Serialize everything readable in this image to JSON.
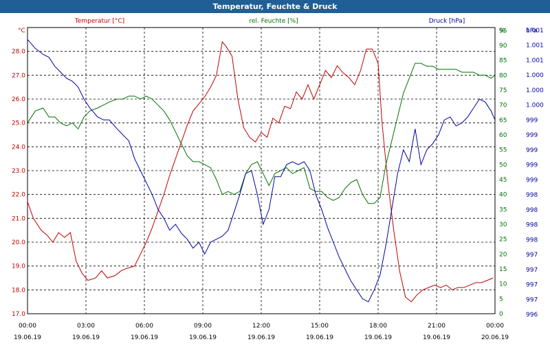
{
  "window": {
    "title": "Temperatur, Feuchte & Druck"
  },
  "colors": {
    "temperature": "#c00000",
    "humidity": "#007000",
    "pressure": "#0000a0",
    "titlebar": "#1f5f96"
  },
  "chart_data": {
    "type": "line",
    "title": "Temperatur, Feuchte & Druck",
    "x_ticks": [
      {
        "time": "00:00",
        "date": "19.06.19"
      },
      {
        "time": "03:00",
        "date": "19.06.19"
      },
      {
        "time": "06:00",
        "date": "19.06.19"
      },
      {
        "time": "09:00",
        "date": "19.06.19"
      },
      {
        "time": "12:00",
        "date": "19.06.19"
      },
      {
        "time": "15:00",
        "date": "19.06.19"
      },
      {
        "time": "18:00",
        "date": "19.06.19"
      },
      {
        "time": "21:00",
        "date": "19.06.19"
      },
      {
        "time": "00:00",
        "date": "20.06.19"
      }
    ],
    "xlim": [
      0,
      24
    ],
    "grid": true,
    "axes": {
      "temperature": {
        "label": "Temperatur [°C]",
        "unit": "°C",
        "ylim": [
          17.0,
          29.0
        ],
        "ticks": [
          "17.0",
          "18.0",
          "19.0",
          "20.0",
          "21.0",
          "22.0",
          "23.0",
          "24.0",
          "25.0",
          "26.0",
          "27.0",
          "28.0"
        ]
      },
      "humidity": {
        "label": "rel. Feuchte [%]",
        "unit": "%",
        "ylim": [
          0,
          96
        ],
        "ticks": [
          "0",
          "5",
          "10",
          "15",
          "20",
          "25",
          "30",
          "35",
          "40",
          "45",
          "50",
          "55",
          "60",
          "65",
          "70",
          "75",
          "80",
          "85",
          "90",
          "95"
        ]
      },
      "pressure": {
        "label": "Druck [hPa]",
        "unit": "hPa",
        "ticks": [
          "996",
          "997",
          "997",
          "997",
          "997",
          "998",
          "998",
          "998",
          "998",
          "999",
          "999",
          "999",
          "999",
          "999",
          "1.000",
          "1.000",
          "1.000",
          "1.001",
          "1.001",
          "1.001"
        ]
      }
    },
    "series": [
      {
        "name": "Temperatur [°C]",
        "axis": "temperature",
        "points": [
          [
            0,
            21.7
          ],
          [
            0.3,
            21.0
          ],
          [
            0.7,
            20.5
          ],
          [
            1.0,
            20.3
          ],
          [
            1.3,
            20.0
          ],
          [
            1.6,
            20.4
          ],
          [
            1.9,
            20.2
          ],
          [
            2.2,
            20.4
          ],
          [
            2.5,
            19.2
          ],
          [
            2.8,
            18.7
          ],
          [
            3.1,
            18.4
          ],
          [
            3.5,
            18.5
          ],
          [
            3.8,
            18.8
          ],
          [
            4.1,
            18.5
          ],
          [
            4.5,
            18.6
          ],
          [
            4.8,
            18.8
          ],
          [
            5.1,
            18.9
          ],
          [
            5.5,
            19.0
          ],
          [
            5.8,
            19.5
          ],
          [
            6.1,
            20.0
          ],
          [
            6.4,
            20.6
          ],
          [
            6.7,
            21.3
          ],
          [
            7.0,
            22.0
          ],
          [
            7.3,
            22.8
          ],
          [
            7.6,
            23.5
          ],
          [
            7.9,
            24.2
          ],
          [
            8.2,
            24.9
          ],
          [
            8.5,
            25.5
          ],
          [
            8.8,
            25.8
          ],
          [
            9.1,
            26.1
          ],
          [
            9.4,
            26.5
          ],
          [
            9.7,
            27.0
          ],
          [
            10.0,
            28.4
          ],
          [
            10.2,
            28.2
          ],
          [
            10.5,
            27.8
          ],
          [
            10.8,
            26.0
          ],
          [
            11.1,
            24.8
          ],
          [
            11.4,
            24.4
          ],
          [
            11.7,
            24.2
          ],
          [
            12.0,
            24.6
          ],
          [
            12.3,
            24.4
          ],
          [
            12.6,
            25.2
          ],
          [
            12.9,
            25.0
          ],
          [
            13.2,
            25.7
          ],
          [
            13.5,
            25.6
          ],
          [
            13.8,
            26.3
          ],
          [
            14.1,
            26.0
          ],
          [
            14.4,
            26.6
          ],
          [
            14.7,
            26.0
          ],
          [
            15.0,
            26.6
          ],
          [
            15.3,
            27.2
          ],
          [
            15.6,
            26.9
          ],
          [
            15.9,
            27.4
          ],
          [
            16.2,
            27.1
          ],
          [
            16.5,
            26.9
          ],
          [
            16.8,
            26.6
          ],
          [
            17.1,
            27.2
          ],
          [
            17.4,
            28.1
          ],
          [
            17.7,
            28.1
          ],
          [
            18.0,
            27.5
          ],
          [
            18.2,
            25.0
          ],
          [
            18.5,
            22.5
          ],
          [
            18.8,
            20.5
          ],
          [
            19.1,
            18.8
          ],
          [
            19.4,
            17.7
          ],
          [
            19.7,
            17.5
          ],
          [
            20.0,
            17.8
          ],
          [
            20.3,
            18.0
          ],
          [
            20.6,
            18.1
          ],
          [
            20.9,
            18.2
          ],
          [
            21.2,
            18.1
          ],
          [
            21.5,
            18.2
          ],
          [
            21.8,
            18.0
          ],
          [
            22.1,
            18.1
          ],
          [
            22.4,
            18.1
          ],
          [
            22.7,
            18.2
          ],
          [
            23.0,
            18.3
          ],
          [
            23.3,
            18.3
          ],
          [
            23.6,
            18.4
          ],
          [
            23.9,
            18.5
          ]
        ]
      },
      {
        "name": "rel. Feuchte [%]",
        "axis": "humidity",
        "points": [
          [
            0,
            64
          ],
          [
            0.4,
            68
          ],
          [
            0.8,
            69
          ],
          [
            1.1,
            66
          ],
          [
            1.4,
            66
          ],
          [
            1.7,
            64
          ],
          [
            2.0,
            63
          ],
          [
            2.3,
            64
          ],
          [
            2.6,
            62
          ],
          [
            2.9,
            66
          ],
          [
            3.2,
            68
          ],
          [
            3.6,
            69
          ],
          [
            3.9,
            70
          ],
          [
            4.2,
            71
          ],
          [
            4.6,
            72
          ],
          [
            4.9,
            72
          ],
          [
            5.2,
            73
          ],
          [
            5.5,
            73
          ],
          [
            5.8,
            72
          ],
          [
            6.1,
            73
          ],
          [
            6.4,
            72
          ],
          [
            6.7,
            70
          ],
          [
            7.0,
            68
          ],
          [
            7.3,
            65
          ],
          [
            7.6,
            61
          ],
          [
            7.9,
            57
          ],
          [
            8.2,
            53
          ],
          [
            8.5,
            51
          ],
          [
            8.8,
            51
          ],
          [
            9.1,
            50
          ],
          [
            9.4,
            49
          ],
          [
            9.7,
            45
          ],
          [
            10.0,
            40
          ],
          [
            10.3,
            41
          ],
          [
            10.6,
            40
          ],
          [
            10.9,
            41
          ],
          [
            11.2,
            47
          ],
          [
            11.5,
            50
          ],
          [
            11.8,
            51
          ],
          [
            12.1,
            47
          ],
          [
            12.4,
            43
          ],
          [
            12.7,
            47
          ],
          [
            13.0,
            48
          ],
          [
            13.3,
            49
          ],
          [
            13.6,
            47
          ],
          [
            13.9,
            48
          ],
          [
            14.2,
            49
          ],
          [
            14.5,
            42
          ],
          [
            14.8,
            41
          ],
          [
            15.1,
            41
          ],
          [
            15.4,
            39
          ],
          [
            15.7,
            38
          ],
          [
            16.0,
            39
          ],
          [
            16.3,
            42
          ],
          [
            16.6,
            44
          ],
          [
            16.9,
            45
          ],
          [
            17.2,
            40
          ],
          [
            17.5,
            37
          ],
          [
            17.8,
            37
          ],
          [
            18.1,
            39
          ],
          [
            18.4,
            50
          ],
          [
            18.7,
            58
          ],
          [
            19.0,
            66
          ],
          [
            19.3,
            74
          ],
          [
            19.6,
            79
          ],
          [
            19.9,
            84
          ],
          [
            20.2,
            84
          ],
          [
            20.5,
            83
          ],
          [
            20.8,
            83
          ],
          [
            21.1,
            82
          ],
          [
            21.4,
            82
          ],
          [
            21.7,
            82
          ],
          [
            22.0,
            82
          ],
          [
            22.3,
            81
          ],
          [
            22.6,
            81
          ],
          [
            22.9,
            81
          ],
          [
            23.2,
            80
          ],
          [
            23.5,
            80
          ],
          [
            23.8,
            79
          ],
          [
            24.0,
            80
          ]
        ]
      },
      {
        "name": "Druck [hPa]",
        "axis": "pressure",
        "points": [
          [
            0,
            92
          ],
          [
            0.4,
            89
          ],
          [
            0.8,
            87
          ],
          [
            1.1,
            86
          ],
          [
            1.4,
            83
          ],
          [
            1.7,
            81
          ],
          [
            2.0,
            79
          ],
          [
            2.3,
            78
          ],
          [
            2.6,
            76
          ],
          [
            2.9,
            72
          ],
          [
            3.2,
            69
          ],
          [
            3.6,
            66
          ],
          [
            3.9,
            65
          ],
          [
            4.2,
            65
          ],
          [
            4.6,
            62
          ],
          [
            4.9,
            60
          ],
          [
            5.2,
            58
          ],
          [
            5.5,
            52
          ],
          [
            5.8,
            48
          ],
          [
            6.1,
            44
          ],
          [
            6.4,
            40
          ],
          [
            6.7,
            35
          ],
          [
            7.0,
            32
          ],
          [
            7.3,
            28
          ],
          [
            7.6,
            30
          ],
          [
            7.9,
            27
          ],
          [
            8.2,
            25
          ],
          [
            8.5,
            22
          ],
          [
            8.8,
            24
          ],
          [
            9.1,
            20
          ],
          [
            9.4,
            24
          ],
          [
            9.7,
            25
          ],
          [
            10.0,
            26
          ],
          [
            10.3,
            28
          ],
          [
            10.6,
            34
          ],
          [
            10.9,
            40
          ],
          [
            11.2,
            47
          ],
          [
            11.5,
            48
          ],
          [
            11.8,
            40
          ],
          [
            12.1,
            30
          ],
          [
            12.4,
            35
          ],
          [
            12.7,
            46
          ],
          [
            13.0,
            46
          ],
          [
            13.3,
            50
          ],
          [
            13.6,
            51
          ],
          [
            13.9,
            50
          ],
          [
            14.2,
            51
          ],
          [
            14.5,
            48
          ],
          [
            14.8,
            40
          ],
          [
            15.1,
            35
          ],
          [
            15.4,
            29
          ],
          [
            15.7,
            24
          ],
          [
            16.0,
            19
          ],
          [
            16.3,
            15
          ],
          [
            16.6,
            11
          ],
          [
            16.9,
            8
          ],
          [
            17.2,
            5
          ],
          [
            17.5,
            4
          ],
          [
            17.8,
            8
          ],
          [
            18.1,
            13
          ],
          [
            18.4,
            23
          ],
          [
            18.7,
            35
          ],
          [
            19.0,
            47
          ],
          [
            19.3,
            55
          ],
          [
            19.6,
            51
          ],
          [
            19.9,
            62
          ],
          [
            20.2,
            50
          ],
          [
            20.5,
            55
          ],
          [
            20.8,
            57
          ],
          [
            21.1,
            60
          ],
          [
            21.4,
            65
          ],
          [
            21.7,
            66
          ],
          [
            22.0,
            63
          ],
          [
            22.3,
            64
          ],
          [
            22.6,
            66
          ],
          [
            22.9,
            69
          ],
          [
            23.2,
            72
          ],
          [
            23.5,
            71
          ],
          [
            23.8,
            68
          ],
          [
            24.0,
            65
          ]
        ]
      }
    ]
  }
}
